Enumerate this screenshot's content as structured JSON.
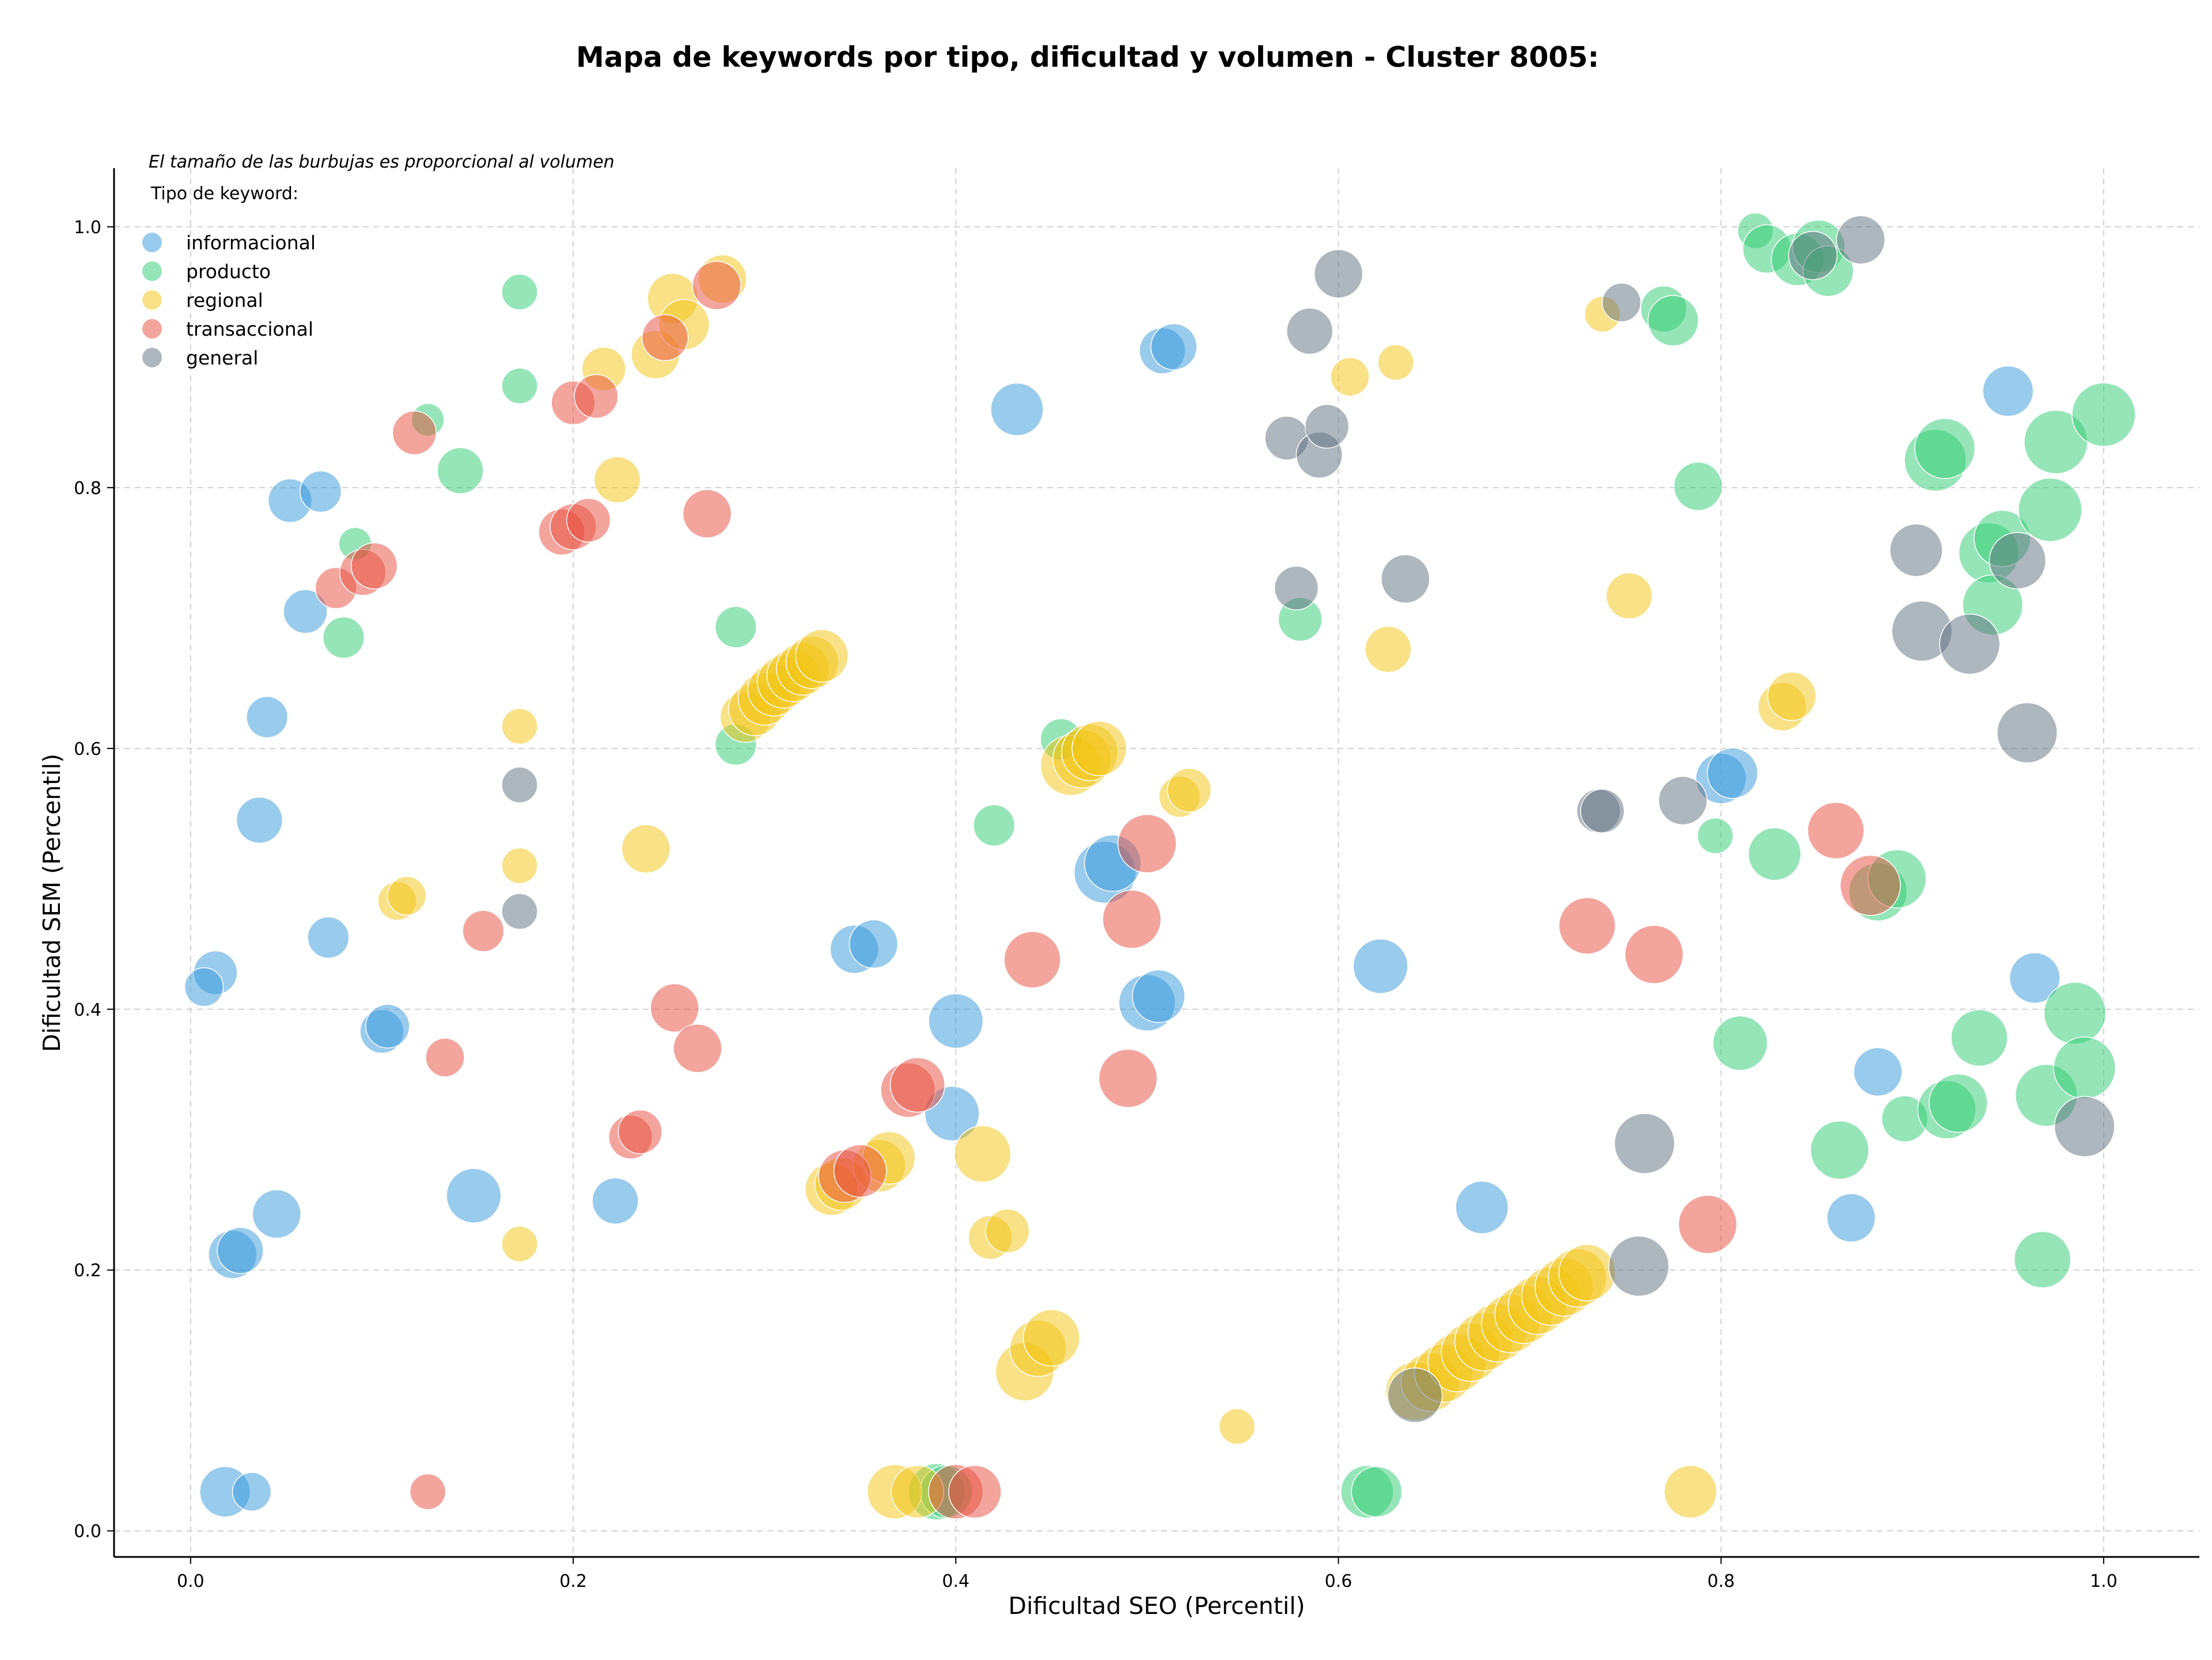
{
  "chart_data": {
    "type": "scatter",
    "title": "Mapa de keywords por tipo, dificultad y volumen - Cluster 8005:",
    "xlabel": "Dificultad SEO (Percentil)",
    "ylabel": "Dificultad SEM (Percentil)",
    "xlim": [
      -0.04,
      1.05
    ],
    "ylim": [
      -0.02,
      1.045
    ],
    "xticks": [
      "0.0",
      "0.2",
      "0.4",
      "0.6",
      "0.8",
      "1.0"
    ],
    "yticks": [
      "0.0",
      "0.2",
      "0.4",
      "0.6",
      "0.8",
      "1.0"
    ],
    "grid": true,
    "legend_placement": "top-left",
    "annotation": "El tamaño de las burbujas es proporcional al volumen",
    "legend_title": "Tipo de keyword:",
    "series": [
      {
        "name": "informacional",
        "color": "#3498db",
        "points": [
          [
            0.018,
            0.03,
            1.2
          ],
          [
            0.032,
            0.03,
            0.7
          ],
          [
            0.022,
            0.212,
            1.1
          ],
          [
            0.026,
            0.215,
            1.0
          ],
          [
            0.045,
            0.243,
            1.1
          ],
          [
            0.013,
            0.428,
            0.9
          ],
          [
            0.007,
            0.417,
            0.7
          ],
          [
            0.072,
            0.455,
            0.8
          ],
          [
            0.036,
            0.545,
            1.0
          ],
          [
            0.04,
            0.624,
            0.8
          ],
          [
            0.1,
            0.383,
            0.9
          ],
          [
            0.103,
            0.387,
            0.9
          ],
          [
            0.06,
            0.705,
            0.9
          ],
          [
            0.052,
            0.79,
            0.9
          ],
          [
            0.068,
            0.797,
            0.8
          ],
          [
            0.148,
            0.257,
            1.4
          ],
          [
            0.222,
            0.253,
            1.0
          ],
          [
            0.347,
            0.446,
            1.1
          ],
          [
            0.357,
            0.45,
            1.1
          ],
          [
            0.4,
            0.391,
            1.4
          ],
          [
            0.398,
            0.32,
            1.4
          ],
          [
            0.432,
            0.86,
            1.3
          ],
          [
            0.478,
            0.505,
            1.8
          ],
          [
            0.482,
            0.512,
            1.5
          ],
          [
            0.5,
            0.405,
            1.5
          ],
          [
            0.506,
            0.41,
            1.3
          ],
          [
            0.508,
            0.905,
            1.0
          ],
          [
            0.514,
            0.908,
            1.0
          ],
          [
            0.622,
            0.433,
            1.4
          ],
          [
            0.675,
            0.248,
            1.3
          ],
          [
            0.8,
            0.577,
            1.2
          ],
          [
            0.806,
            0.581,
            1.2
          ],
          [
            0.868,
            0.24,
            1.1
          ],
          [
            0.882,
            0.352,
            1.1
          ],
          [
            0.95,
            0.874,
            1.2
          ],
          [
            0.964,
            0.424,
            1.2
          ]
        ]
      },
      {
        "name": "producto",
        "color": "#2ecc71",
        "points": [
          [
            0.172,
            0.95,
            0.6
          ],
          [
            0.172,
            0.878,
            0.6
          ],
          [
            0.124,
            0.852,
            0.5
          ],
          [
            0.141,
            0.813,
            1.0
          ],
          [
            0.086,
            0.757,
            0.5
          ],
          [
            0.08,
            0.685,
            0.8
          ],
          [
            0.285,
            0.693,
            0.8
          ],
          [
            0.285,
            0.603,
            0.8
          ],
          [
            0.42,
            0.541,
            0.8
          ],
          [
            0.455,
            0.607,
            0.8
          ],
          [
            0.39,
            0.03,
            1.5
          ],
          [
            0.395,
            0.03,
            1.3
          ],
          [
            0.58,
            0.699,
            0.9
          ],
          [
            0.615,
            0.03,
            1.3
          ],
          [
            0.62,
            0.03,
            1.2
          ],
          [
            0.77,
            0.937,
            1.0
          ],
          [
            0.775,
            0.928,
            1.2
          ],
          [
            0.788,
            0.801,
            1.1
          ],
          [
            0.797,
            0.533,
            0.6
          ],
          [
            0.818,
            0.997,
            0.6
          ],
          [
            0.824,
            0.983,
            1.1
          ],
          [
            0.84,
            0.975,
            1.3
          ],
          [
            0.851,
            0.985,
            1.3
          ],
          [
            0.856,
            0.966,
            1.2
          ],
          [
            0.81,
            0.374,
            1.4
          ],
          [
            0.828,
            0.519,
            1.3
          ],
          [
            0.862,
            0.292,
            1.6
          ],
          [
            0.882,
            0.49,
            1.6
          ],
          [
            0.892,
            0.5,
            1.6
          ],
          [
            0.896,
            0.316,
            1.0
          ],
          [
            0.912,
            0.821,
            1.8
          ],
          [
            0.917,
            0.83,
            1.7
          ],
          [
            0.918,
            0.323,
            1.6
          ],
          [
            0.924,
            0.328,
            1.6
          ],
          [
            0.94,
            0.75,
            1.7
          ],
          [
            0.947,
            0.761,
            1.5
          ],
          [
            0.942,
            0.71,
            1.7
          ],
          [
            0.935,
            0.378,
            1.5
          ],
          [
            0.975,
            0.835,
            1.9
          ],
          [
            0.972,
            0.783,
            1.9
          ],
          [
            0.97,
            0.334,
            1.8
          ],
          [
            0.985,
            0.397,
            1.8
          ],
          [
            0.99,
            0.355,
            1.8
          ],
          [
            0.968,
            0.208,
            1.5
          ],
          [
            1.0,
            0.856,
            1.9
          ]
        ]
      },
      {
        "name": "regional",
        "color": "#f1c40f",
        "points": [
          [
            0.172,
            0.617,
            0.6
          ],
          [
            0.172,
            0.51,
            0.6
          ],
          [
            0.172,
            0.22,
            0.6
          ],
          [
            0.108,
            0.483,
            0.7
          ],
          [
            0.113,
            0.487,
            0.7
          ],
          [
            0.216,
            0.891,
            0.9
          ],
          [
            0.223,
            0.806,
            1.0
          ],
          [
            0.238,
            0.523,
            1.1
          ],
          [
            0.243,
            0.902,
            1.1
          ],
          [
            0.252,
            0.945,
            1.2
          ],
          [
            0.258,
            0.925,
            1.2
          ],
          [
            0.278,
            0.96,
            1.1
          ],
          [
            0.29,
            0.624,
            1.2
          ],
          [
            0.295,
            0.63,
            1.3
          ],
          [
            0.3,
            0.638,
            1.3
          ],
          [
            0.305,
            0.645,
            1.3
          ],
          [
            0.31,
            0.651,
            1.3
          ],
          [
            0.315,
            0.656,
            1.3
          ],
          [
            0.32,
            0.661,
            1.3
          ],
          [
            0.325,
            0.666,
            1.3
          ],
          [
            0.33,
            0.671,
            1.3
          ],
          [
            0.335,
            0.262,
            1.3
          ],
          [
            0.34,
            0.266,
            1.3
          ],
          [
            0.36,
            0.28,
            1.3
          ],
          [
            0.365,
            0.286,
            1.3
          ],
          [
            0.368,
            0.03,
            1.4
          ],
          [
            0.38,
            0.03,
            1.3
          ],
          [
            0.414,
            0.289,
            1.5
          ],
          [
            0.418,
            0.225,
            0.9
          ],
          [
            0.427,
            0.23,
            0.9
          ],
          [
            0.436,
            0.122,
            1.6
          ],
          [
            0.443,
            0.14,
            1.5
          ],
          [
            0.45,
            0.148,
            1.5
          ],
          [
            0.46,
            0.587,
            1.7
          ],
          [
            0.466,
            0.592,
            1.6
          ],
          [
            0.47,
            0.597,
            1.5
          ],
          [
            0.475,
            0.6,
            1.4
          ],
          [
            0.517,
            0.563,
            0.8
          ],
          [
            0.522,
            0.568,
            0.9
          ],
          [
            0.547,
            0.08,
            0.6
          ],
          [
            0.606,
            0.885,
            0.7
          ],
          [
            0.63,
            0.896,
            0.6
          ],
          [
            0.626,
            0.676,
            1.0
          ],
          [
            0.64,
            0.107,
            1.6
          ],
          [
            0.648,
            0.114,
            1.6
          ],
          [
            0.655,
            0.121,
            1.6
          ],
          [
            0.662,
            0.129,
            1.6
          ],
          [
            0.669,
            0.137,
            1.6
          ],
          [
            0.676,
            0.145,
            1.6
          ],
          [
            0.683,
            0.152,
            1.6
          ],
          [
            0.69,
            0.159,
            1.6
          ],
          [
            0.697,
            0.166,
            1.6
          ],
          [
            0.704,
            0.173,
            1.6
          ],
          [
            0.711,
            0.18,
            1.6
          ],
          [
            0.718,
            0.187,
            1.6
          ],
          [
            0.725,
            0.194,
            1.6
          ],
          [
            0.73,
            0.198,
            1.5
          ],
          [
            0.738,
            0.933,
            0.6
          ],
          [
            0.752,
            0.717,
            1.0
          ],
          [
            0.784,
            0.03,
            1.3
          ],
          [
            0.832,
            0.632,
            1.1
          ],
          [
            0.837,
            0.64,
            1.1
          ]
        ]
      },
      {
        "name": "transaccional",
        "color": "#e74c3c",
        "points": [
          [
            0.124,
            0.03,
            0.6
          ],
          [
            0.133,
            0.363,
            0.7
          ],
          [
            0.153,
            0.46,
            0.8
          ],
          [
            0.117,
            0.842,
            0.9
          ],
          [
            0.076,
            0.723,
            0.8
          ],
          [
            0.09,
            0.735,
            1.0
          ],
          [
            0.096,
            0.74,
            1.0
          ],
          [
            0.194,
            0.766,
            1.0
          ],
          [
            0.2,
            0.77,
            1.0
          ],
          [
            0.208,
            0.775,
            0.9
          ],
          [
            0.2,
            0.865,
            0.9
          ],
          [
            0.212,
            0.87,
            0.9
          ],
          [
            0.23,
            0.302,
            0.9
          ],
          [
            0.235,
            0.306,
            0.9
          ],
          [
            0.248,
            0.915,
            1.0
          ],
          [
            0.253,
            0.401,
            1.1
          ],
          [
            0.265,
            0.37,
            1.1
          ],
          [
            0.27,
            0.78,
            1.1
          ],
          [
            0.275,
            0.955,
            1.1
          ],
          [
            0.342,
            0.272,
            1.3
          ],
          [
            0.35,
            0.276,
            1.3
          ],
          [
            0.375,
            0.338,
            1.4
          ],
          [
            0.38,
            0.342,
            1.4
          ],
          [
            0.4,
            0.03,
            1.4
          ],
          [
            0.41,
            0.03,
            1.3
          ],
          [
            0.44,
            0.438,
            1.5
          ],
          [
            0.49,
            0.347,
            1.6
          ],
          [
            0.492,
            0.469,
            1.6
          ],
          [
            0.5,
            0.527,
            1.6
          ],
          [
            0.73,
            0.464,
            1.5
          ],
          [
            0.765,
            0.442,
            1.6
          ],
          [
            0.793,
            0.235,
            1.6
          ],
          [
            0.86,
            0.537,
            1.5
          ],
          [
            0.878,
            0.495,
            1.7
          ]
        ]
      },
      {
        "name": "general",
        "color": "#5d6d7e",
        "points": [
          [
            0.172,
            0.572,
            0.6
          ],
          [
            0.172,
            0.475,
            0.6
          ],
          [
            0.573,
            0.838,
            0.9
          ],
          [
            0.578,
            0.723,
            0.9
          ],
          [
            0.585,
            0.92,
            1.0
          ],
          [
            0.59,
            0.825,
            1.0
          ],
          [
            0.594,
            0.847,
            0.9
          ],
          [
            0.6,
            0.964,
            1.1
          ],
          [
            0.635,
            0.73,
            1.1
          ],
          [
            0.64,
            0.104,
            1.4
          ],
          [
            0.736,
            0.552,
            0.9
          ],
          [
            0.738,
            0.552,
            0.9
          ],
          [
            0.748,
            0.942,
            0.7
          ],
          [
            0.76,
            0.297,
            1.7
          ],
          [
            0.757,
            0.203,
            1.7
          ],
          [
            0.78,
            0.56,
            1.1
          ],
          [
            0.848,
            0.978,
            1.1
          ],
          [
            0.873,
            0.99,
            1.1
          ],
          [
            0.902,
            0.752,
            1.3
          ],
          [
            0.905,
            0.69,
            1.7
          ],
          [
            0.93,
            0.68,
            1.7
          ],
          [
            0.955,
            0.744,
            1.5
          ],
          [
            0.96,
            0.612,
            1.7
          ],
          [
            0.99,
            0.31,
            1.7
          ]
        ]
      }
    ]
  }
}
